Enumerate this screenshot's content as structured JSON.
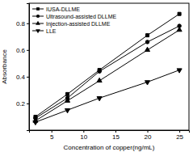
{
  "chart_data": {
    "type": "line",
    "x_label": "Concentration of copper(ng/mL)",
    "y_label": "Absorbance",
    "x": [
      2.5,
      7.5,
      12.5,
      20,
      25
    ],
    "series": [
      {
        "name": "IUSA-DLLME",
        "color": "#000000",
        "marker": "square",
        "values": [
          0.1,
          0.27,
          0.45,
          0.71,
          0.87
        ]
      },
      {
        "name": "Ultrasound-assisted DLLME",
        "color": "#000000",
        "marker": "circle",
        "values": [
          0.09,
          0.24,
          0.44,
          0.66,
          0.78
        ]
      },
      {
        "name": "Injection-assisted DLLME",
        "color": "#000000",
        "marker": "triangle",
        "values": [
          0.07,
          0.22,
          0.37,
          0.6,
          0.75
        ]
      },
      {
        "name": "LLE",
        "color": "#000000",
        "marker": "triangle-down",
        "values": [
          0.06,
          0.15,
          0.24,
          0.36,
          0.45
        ]
      }
    ],
    "xlim": [
      1.5,
      26.5
    ],
    "xticks": [
      5,
      10,
      15,
      20,
      25
    ],
    "ylim": [
      0.0,
      0.95
    ],
    "yticks": [
      0.2,
      0.4,
      0.6,
      0.8
    ],
    "legend": "top-left",
    "grid": false
  }
}
